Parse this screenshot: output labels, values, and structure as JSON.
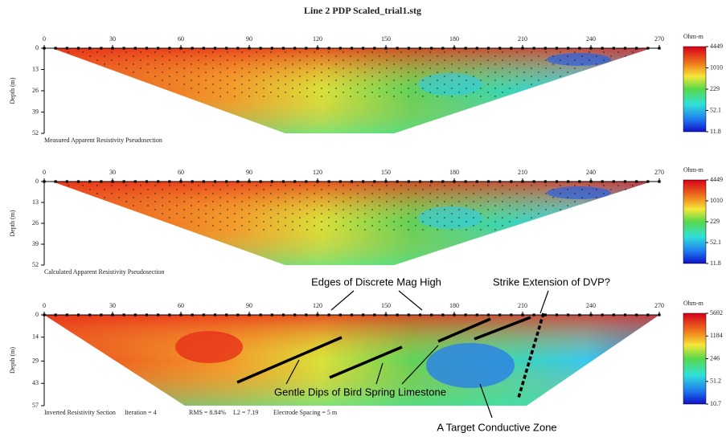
{
  "title": "Line 2 PDP Scaled_trial1.stg",
  "panels": [
    {
      "caption": "Measured Apparent Resistivity Pseudosection",
      "y_label": "Depth (m)",
      "xticks": [
        0,
        30,
        60,
        90,
        120,
        150,
        180,
        210,
        240,
        270
      ],
      "yticks": [
        0,
        13,
        26,
        39,
        52
      ],
      "colorbar": {
        "unit": "Ohm-m",
        "ticks": [
          4449,
          1010,
          229,
          52.1,
          11.8
        ]
      }
    },
    {
      "caption": "Calculated Apparent Resistivity Pseudosection",
      "y_label": "Depth (m)",
      "xticks": [
        0,
        30,
        60,
        90,
        120,
        150,
        180,
        210,
        240,
        270
      ],
      "yticks": [
        0,
        13,
        26,
        39,
        52
      ],
      "colorbar": {
        "unit": "Ohm-m",
        "ticks": [
          4449,
          1010,
          229,
          52.1,
          11.8
        ]
      }
    },
    {
      "caption": "Inverted Resistivity Section",
      "y_label": "Depth (m)",
      "stats": [
        "Iteration = 4",
        "RMS = 8.84%",
        "L2 = 7.19",
        "Electrode Spacing = 5 m"
      ],
      "xticks": [
        0,
        30,
        60,
        90,
        120,
        150,
        180,
        210,
        240,
        270
      ],
      "yticks": [
        0,
        14,
        29,
        43,
        57
      ],
      "colorbar": {
        "unit": "Ohm-m",
        "ticks": [
          5692,
          1184,
          246,
          51.2,
          10.7
        ]
      }
    }
  ],
  "annotations": [
    "Edges of Discrete Mag High",
    "Strike Extension of DVP?",
    "Gentle Dips of Bird Spring Limestone",
    "A Target Conductive Zone"
  ]
}
